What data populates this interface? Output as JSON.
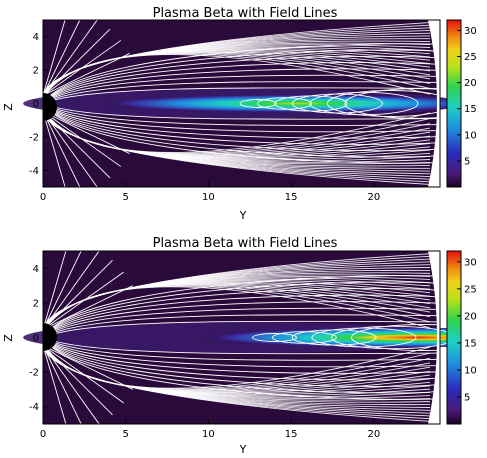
{
  "chart_data": [
    {
      "type": "heatmap",
      "title": "Plasma Beta with Field Lines",
      "xlabel": "Y",
      "ylabel": "Z",
      "xlim": [
        0,
        24
      ],
      "ylim": [
        -5,
        5
      ],
      "xticks": [
        0,
        5,
        10,
        15,
        20
      ],
      "yticks": [
        4,
        2,
        0,
        -2,
        -4
      ],
      "colorbar": {
        "min": 0,
        "max": 32,
        "ticks": [
          5,
          10,
          15,
          20,
          25,
          30
        ]
      },
      "current_sheet_peak": {
        "y": 16.5,
        "value": 18
      },
      "colors": {
        "background": "#2a0a3a",
        "lines": "#ffffff"
      }
    },
    {
      "type": "heatmap",
      "title": "Plasma Beta with Field Lines",
      "xlabel": "Y",
      "ylabel": "Z",
      "xlim": [
        0,
        24
      ],
      "ylim": [
        -5,
        5
      ],
      "xticks": [
        0,
        5,
        10,
        15,
        20
      ],
      "yticks": [
        4,
        2,
        0,
        -2,
        -4
      ],
      "colorbar": {
        "min": 0,
        "max": 32,
        "ticks": [
          5,
          10,
          15,
          20,
          25,
          30
        ]
      },
      "current_sheet_peak": {
        "y": 23.5,
        "value": 31
      },
      "colors": {
        "background": "#2a0a3a",
        "lines": "#ffffff"
      }
    }
  ]
}
